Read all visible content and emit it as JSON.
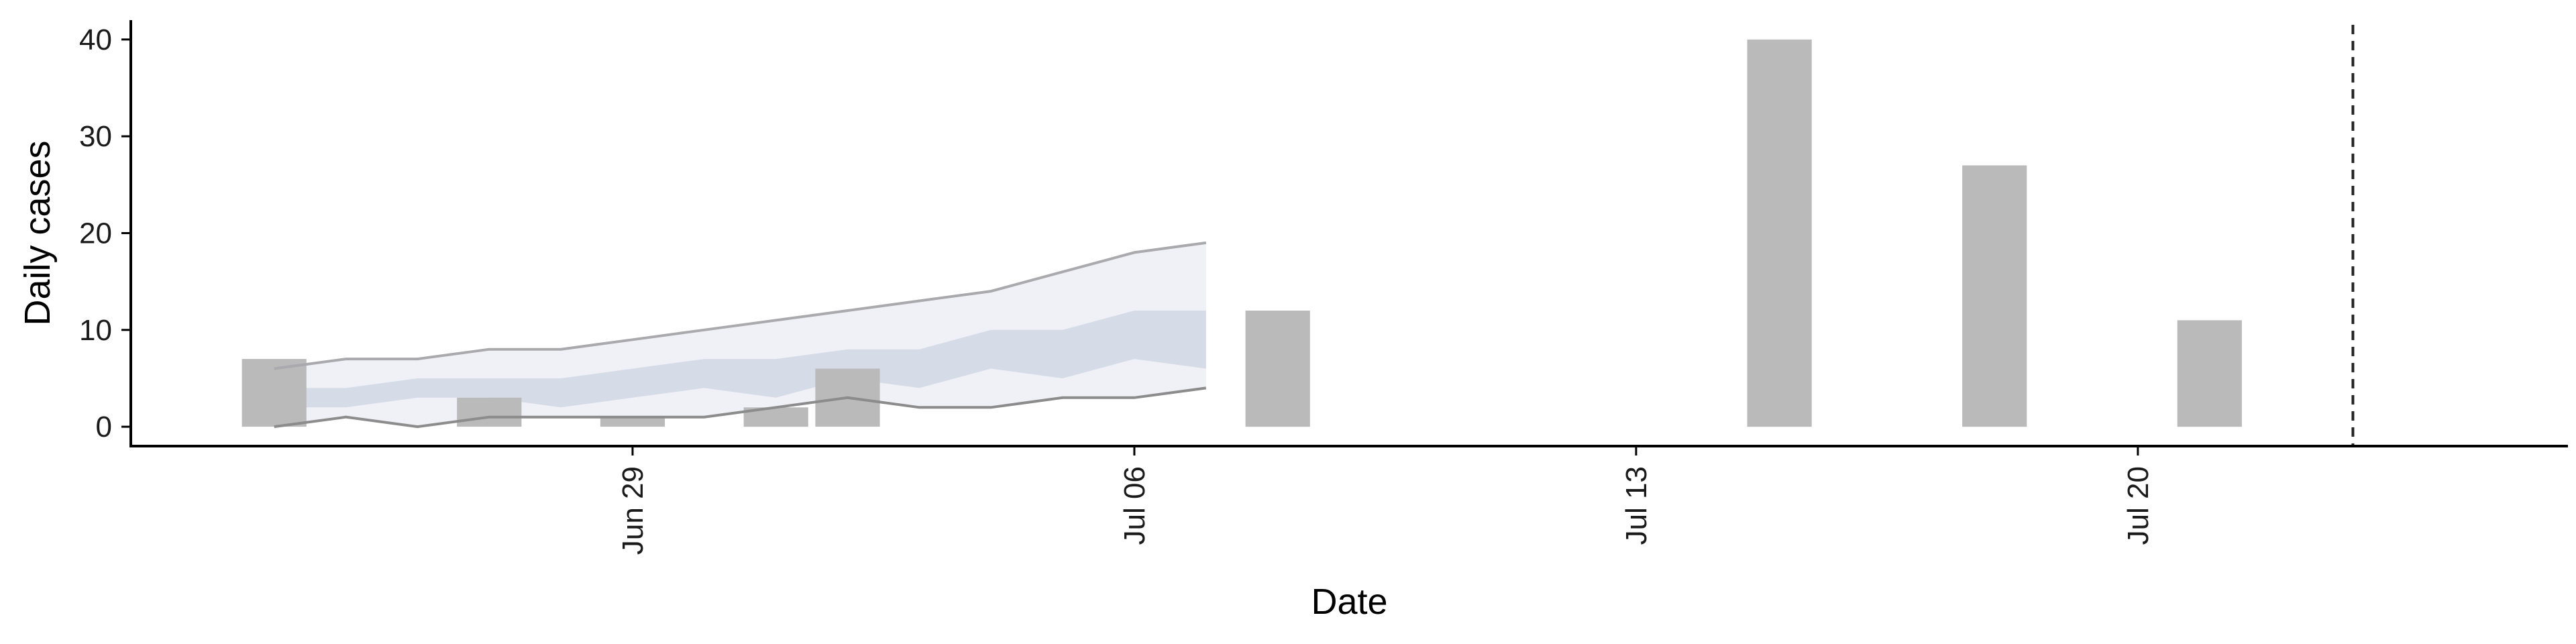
{
  "chart_data": {
    "type": "bar",
    "xlabel": "Date",
    "ylabel": "Daily cases",
    "ylim": [
      -2,
      42
    ],
    "xlim": [
      "2020-06-22",
      "2020-07-26"
    ],
    "y_ticks": [
      0,
      10,
      20,
      30,
      40
    ],
    "x_ticks": [
      {
        "date": "2020-06-29",
        "label": "Jun 29"
      },
      {
        "date": "2020-07-06",
        "label": "Jul 06"
      },
      {
        "date": "2020-07-13",
        "label": "Jul 13"
      },
      {
        "date": "2020-07-20",
        "label": "Jul 20"
      }
    ],
    "bars": [
      {
        "date": "2020-06-24",
        "value": 7
      },
      {
        "date": "2020-06-27",
        "value": 3
      },
      {
        "date": "2020-06-29",
        "value": 1
      },
      {
        "date": "2020-07-01",
        "value": 2
      },
      {
        "date": "2020-07-02",
        "value": 6
      },
      {
        "date": "2020-07-08",
        "value": 12
      },
      {
        "date": "2020-07-15",
        "value": 40
      },
      {
        "date": "2020-07-18",
        "value": 27
      },
      {
        "date": "2020-07-21",
        "value": 11
      }
    ],
    "vline_date": "2020-07-23",
    "forecast": {
      "dates": [
        "2020-06-24",
        "2020-06-25",
        "2020-06-26",
        "2020-06-27",
        "2020-06-28",
        "2020-06-29",
        "2020-06-30",
        "2020-07-01",
        "2020-07-02",
        "2020-07-03",
        "2020-07-04",
        "2020-07-05",
        "2020-07-06",
        "2020-07-07"
      ],
      "outer_lower": [
        0,
        1,
        0,
        1,
        1,
        1,
        1,
        2,
        3,
        2,
        2,
        3,
        3,
        4
      ],
      "outer_upper": [
        6,
        7,
        7,
        8,
        8,
        9,
        10,
        11,
        12,
        13,
        14,
        16,
        18,
        19
      ],
      "inner_lower": [
        2,
        2,
        3,
        3,
        2,
        3,
        4,
        3,
        5,
        4,
        6,
        5,
        7,
        6
      ],
      "inner_upper": [
        4,
        4,
        5,
        5,
        5,
        6,
        7,
        7,
        8,
        8,
        10,
        10,
        12,
        12
      ]
    },
    "colors": {
      "bar": "#bababa",
      "outer_band": "#f0f1f6",
      "inner_band": "#d6dbe8",
      "outer_upper_line": "#a9a9ae",
      "outer_lower_line": "#8c8c8c",
      "axis": "#000000",
      "vline": "#222222"
    },
    "grid": false,
    "legend": "none"
  }
}
